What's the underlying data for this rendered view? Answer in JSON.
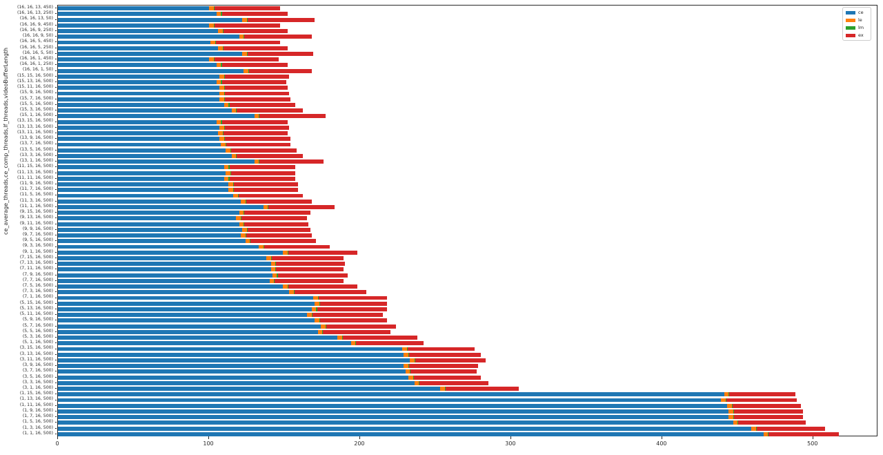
{
  "chart_data": {
    "type": "bar",
    "orientation": "horizontal",
    "stacked": true,
    "title": "",
    "xlabel": "",
    "ylabel": "ce_average_threads,ce_comp_threads,lf_threads,videoBufferLength",
    "xlim": [
      0,
      543
    ],
    "xticks": [
      0,
      100,
      200,
      300,
      400,
      500
    ],
    "grid": false,
    "legend_position": "upper right",
    "categories": [
      "(16, 16, 13, 450)",
      "(16, 16, 13, 250)",
      "(16, 16, 13, 50)",
      "(16, 16, 9, 450)",
      "(16, 16, 9, 250)",
      "(16, 16, 9, 50)",
      "(16, 16, 5, 450)",
      "(16, 16, 5, 250)",
      "(16, 16, 5, 50)",
      "(16, 16, 1, 450)",
      "(16, 16, 1, 250)",
      "(16, 16, 1, 50)",
      "(15, 15, 16, 500)",
      "(15, 13, 16, 500)",
      "(15, 11, 16, 500)",
      "(15, 9, 16, 500)",
      "(15, 7, 16, 500)",
      "(15, 5, 16, 500)",
      "(15, 3, 16, 500)",
      "(15, 1, 16, 500)",
      "(13, 15, 16, 500)",
      "(13, 13, 16, 500)",
      "(13, 11, 16, 500)",
      "(13, 9, 16, 500)",
      "(13, 7, 16, 500)",
      "(13, 5, 16, 500)",
      "(13, 3, 16, 500)",
      "(13, 1, 16, 500)",
      "(11, 15, 16, 500)",
      "(11, 13, 16, 500)",
      "(11, 11, 16, 500)",
      "(11, 9, 16, 500)",
      "(11, 7, 16, 500)",
      "(11, 5, 16, 500)",
      "(11, 3, 16, 500)",
      "(11, 1, 16, 500)",
      "(9, 15, 16, 500)",
      "(9, 13, 16, 500)",
      "(9, 11, 16, 500)",
      "(9, 9, 16, 500)",
      "(9, 7, 16, 500)",
      "(9, 5, 16, 500)",
      "(9, 3, 16, 500)",
      "(9, 1, 16, 500)",
      "(7, 15, 16, 500)",
      "(7, 13, 16, 500)",
      "(7, 11, 16, 500)",
      "(7, 9, 16, 500)",
      "(7, 7, 16, 500)",
      "(7, 5, 16, 500)",
      "(7, 3, 16, 500)",
      "(7, 1, 16, 500)",
      "(5, 15, 16, 500)",
      "(5, 13, 16, 500)",
      "(5, 11, 16, 500)",
      "(5, 9, 16, 500)",
      "(5, 7, 16, 500)",
      "(5, 5, 16, 500)",
      "(5, 3, 16, 500)",
      "(5, 1, 16, 500)",
      "(3, 15, 16, 500)",
      "(3, 13, 16, 500)",
      "(3, 11, 16, 500)",
      "(3, 9, 16, 500)",
      "(3, 7, 16, 500)",
      "(3, 5, 16, 500)",
      "(3, 3, 16, 500)",
      "(3, 1, 16, 500)",
      "(1, 15, 16, 500)",
      "(1, 13, 16, 500)",
      "(1, 11, 16, 500)",
      "(1, 9, 16, 500)",
      "(1, 7, 16, 500)",
      "(1, 5, 16, 500)",
      "(1, 3, 16, 500)",
      "(1, 1, 16, 500)"
    ],
    "series": [
      {
        "name": "ce",
        "color": "#1f77b4",
        "values": [
          100,
          105,
          122,
          100,
          106,
          120,
          101,
          106,
          122,
          100,
          105,
          123,
          107,
          105,
          107,
          107,
          107,
          110,
          115,
          130,
          105,
          107,
          106,
          107,
          108,
          111,
          115,
          130,
          110,
          111,
          110,
          113,
          113,
          116,
          121,
          136,
          120,
          118,
          120,
          122,
          121,
          124,
          133,
          149,
          138,
          141,
          141,
          142,
          140,
          149,
          153,
          169,
          170,
          168,
          165,
          170,
          174,
          172,
          185,
          194,
          228,
          229,
          233,
          229,
          230,
          232,
          236,
          253,
          441,
          439,
          443,
          444,
          444,
          447,
          459,
          467
        ]
      },
      {
        "name": "le",
        "color": "#ff7f0e",
        "values": [
          3,
          3,
          3,
          3,
          3,
          3,
          3,
          3,
          3,
          3,
          3,
          3,
          3,
          3,
          3,
          3,
          3,
          3,
          3,
          3,
          3,
          3,
          3,
          3,
          3,
          3,
          3,
          3,
          3,
          3,
          3,
          3,
          3,
          3,
          3,
          3,
          3,
          3,
          3,
          3,
          3,
          3,
          3,
          3,
          3,
          3,
          3,
          3,
          3,
          3,
          3,
          3,
          3,
          3,
          3,
          3,
          3,
          3,
          3,
          3,
          3,
          3,
          3,
          3,
          3,
          3,
          3,
          3,
          3,
          3,
          3,
          3,
          3,
          3,
          3,
          3
        ]
      },
      {
        "name": "lm",
        "color": "#2ca02c",
        "values": [
          0.5,
          0.5,
          0.5,
          0.5,
          0.5,
          0.5,
          0.5,
          0.5,
          0.5,
          0.5,
          0.5,
          0.5,
          0.5,
          0.5,
          0.5,
          0.5,
          0.5,
          0.5,
          0.5,
          0.5,
          0.5,
          0.5,
          0.5,
          0.5,
          0.5,
          0.5,
          0.5,
          0.5,
          0.5,
          0.5,
          0.5,
          0.5,
          0.5,
          0.5,
          0.5,
          0.5,
          0.5,
          0.5,
          0.5,
          0.5,
          0.5,
          0.5,
          0.5,
          0.5,
          0.5,
          0.5,
          0.5,
          0.5,
          0.5,
          0.5,
          0.5,
          0.5,
          0.5,
          0.5,
          0.5,
          0.5,
          0.5,
          0.5,
          0.5,
          0.5,
          0.5,
          0.5,
          0.5,
          0.5,
          0.5,
          0.5,
          0.5,
          0.5,
          0.5,
          0.5,
          0.5,
          0.5,
          0.5,
          0.5,
          0.5,
          0.5
        ]
      },
      {
        "name": "ex",
        "color": "#d62728",
        "values": [
          43.5,
          43.5,
          44.5,
          43.5,
          42.5,
          44.5,
          42.5,
          42.5,
          43.5,
          42.5,
          43.5,
          41.5,
          42.5,
          42.5,
          41.5,
          42.5,
          43.5,
          43.5,
          43.5,
          43.5,
          43.5,
          42.5,
          42.5,
          43.5,
          42.5,
          43.5,
          43.5,
          42.5,
          43.5,
          42.5,
          43.5,
          42.5,
          42.5,
          42.5,
          43.5,
          43.5,
          43.5,
          43.5,
          42.5,
          41.5,
          43.5,
          43.5,
          43.5,
          45.5,
          47.5,
          45.5,
          44.5,
          46.5,
          45.5,
          45.5,
          47.5,
          45.5,
          44.5,
          46.5,
          46.5,
          44.5,
          46.5,
          44.5,
          49.5,
          44.5,
          44.5,
          47.5,
          46.5,
          45.5,
          43.5,
          44.5,
          45.5,
          48.5,
          43.5,
          46.5,
          45.5,
          45.5,
          45.5,
          44.5,
          45.5,
          46.5
        ]
      }
    ]
  }
}
